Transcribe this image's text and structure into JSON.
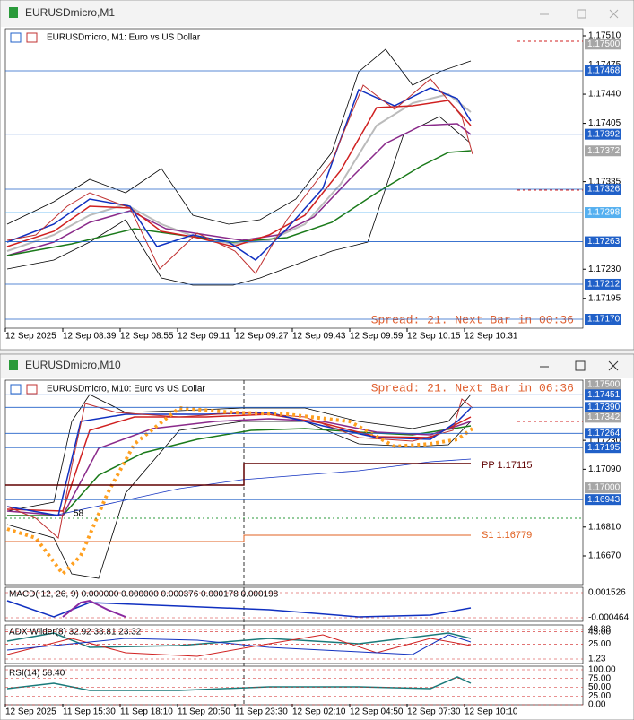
{
  "window1": {
    "title": "EURUSDmicro,M1",
    "chart_label": "EURUSDmicro, M1: Euro vs US Dollar",
    "price_ticks": [
      "1.17510",
      "1.17475",
      "1.17440",
      "1.17405",
      "1.17335",
      "1.17230",
      "1.17195"
    ],
    "price_levels": [
      {
        "label": "1.17500",
        "color": "#a6a6a6"
      },
      {
        "label": "1.17468",
        "color": "#2060c8"
      },
      {
        "label": "1.17392",
        "color": "#2060c8"
      },
      {
        "label": "1.17372",
        "color": "#a6a6a6"
      },
      {
        "label": "1.17326",
        "color": "#2060c8"
      },
      {
        "label": "1.17298",
        "color": "#55b0f0"
      },
      {
        "label": "1.17263",
        "color": "#2060c8"
      },
      {
        "label": "1.17212",
        "color": "#2060c8"
      },
      {
        "label": "1.17170",
        "color": "#2060c8"
      }
    ],
    "time_labels": [
      "12 Sep 2025",
      "12 Sep 08:39",
      "12 Sep 08:55",
      "12 Sep 09:11",
      "12 Sep 09:27",
      "12 Sep 09:43",
      "12 Sep 09:59",
      "12 Sep 10:15",
      "12 Sep 10:31"
    ],
    "spread": "Spread: 21. Next Bar in 00:36"
  },
  "window2": {
    "title": "EURUSDmicro,M10",
    "chart_label": "EURUSDmicro, M10: Euro vs US Dollar",
    "price_ticks": [
      "1.17230",
      "1.17090",
      "1.16810",
      "1.16670"
    ],
    "price_levels": [
      {
        "label": "1.17500",
        "color": "#a6a6a6"
      },
      {
        "label": "1.17451",
        "color": "#2060c8"
      },
      {
        "label": "1.17390",
        "color": "#2060c8"
      },
      {
        "label": "1.17342",
        "color": "#a6a6a6"
      },
      {
        "label": "1.17264",
        "color": "#2060c8"
      },
      {
        "label": "1.17195",
        "color": "#2060c8"
      },
      {
        "label": "1.17000",
        "color": "#a6a6a6"
      },
      {
        "label": "1.16943",
        "color": "#2060c8"
      }
    ],
    "spread": "Spread: 21. Next Bar in 06:36",
    "pivot": "PP 1.17115",
    "support": "S1 1.16779",
    "fragment": "58",
    "macd": {
      "label": "MACD( 12, 26, 9) 0.000000 0.000000 0.000376 0.000178 0.000198",
      "ticks": [
        "0.001526",
        "-0.000464"
      ]
    },
    "adx": {
      "label": "ADX Wilder(8) 32.92 33.81 23.32",
      "ticks": [
        "48.88",
        "45.00",
        "25.00",
        "1.23"
      ]
    },
    "rsi": {
      "label": "RSI(14) 58.40",
      "ticks": [
        "100.00",
        "75.00",
        "50.00",
        "25.00",
        "0.00"
      ]
    },
    "time_labels": [
      "12 Sep 2025",
      "11 Sep 15:30",
      "11 Sep 18:10",
      "11 Sep 20:50",
      "11 Sep 23:30",
      "12 Sep 02:10",
      "12 Sep 04:50",
      "12 Sep 07:30",
      "12 Sep 10:10"
    ]
  }
}
